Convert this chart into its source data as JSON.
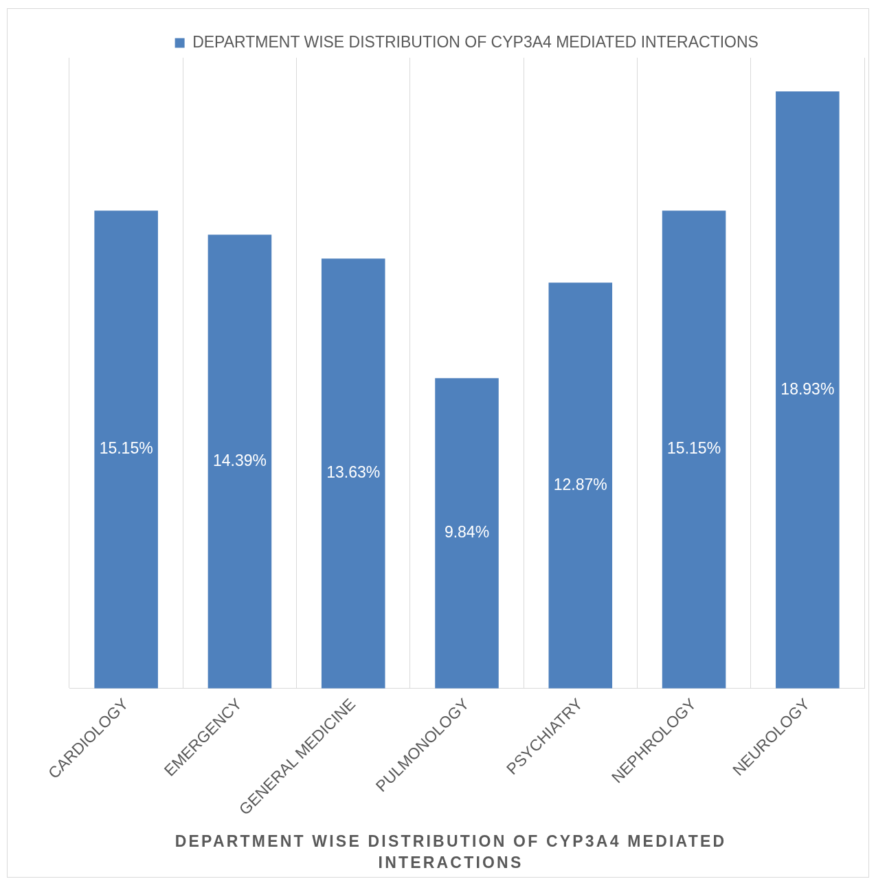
{
  "chart_data": {
    "type": "bar",
    "xlabel": "DEPARTMENT WISE DISTRIBUTION OF CYP3A4 MEDIATED INTERACTIONS",
    "categories": [
      "CARDIOLOGY",
      "EMERGENCY",
      "GENERAL MEDICINE",
      "PULMONOLOGY",
      "PSYCHIATRY",
      "NEPHROLOGY",
      "NEUROLOGY"
    ],
    "series": [
      {
        "name": "DEPARTMENT WISE DISTRIBUTION OF CYP3A4 MEDIATED INTERACTIONS",
        "color": "#4f81bd",
        "values": [
          15.15,
          14.39,
          13.63,
          9.84,
          12.87,
          15.15,
          18.93
        ],
        "value_labels": [
          "15.15%",
          "14.39%",
          "13.63%",
          "9.84%",
          "12.87%",
          "15.15%",
          "18.93%"
        ]
      }
    ],
    "ylim": [
      0,
      20
    ],
    "tick_labels": "x",
    "grid": "x",
    "legend": "top"
  }
}
